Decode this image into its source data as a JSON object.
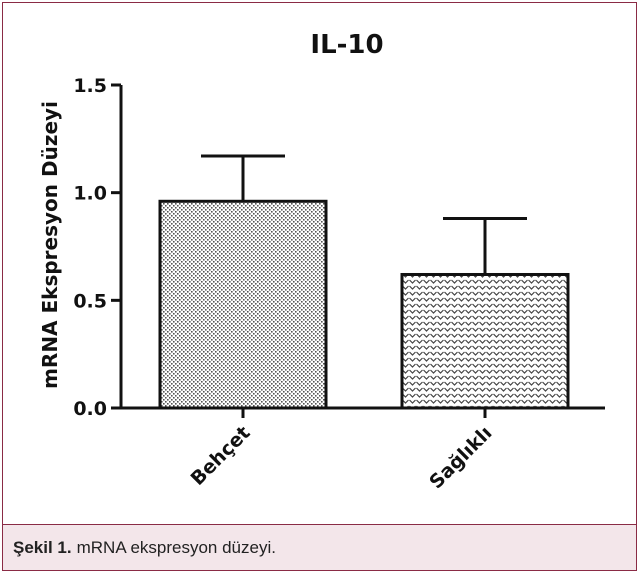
{
  "chart_data": {
    "type": "bar",
    "title": "IL-10",
    "ylabel": "mRNA Ekspresyon Düzeyi",
    "xlabel": "",
    "categories": [
      "Behçet",
      "Sağlıklı"
    ],
    "values": [
      0.96,
      0.62
    ],
    "errors": [
      0.21,
      0.26
    ],
    "ylim": [
      0,
      1.5
    ],
    "yticks": [
      "0.0",
      "0.5",
      "1.0",
      "1.5"
    ],
    "grid": false,
    "legend": "none"
  },
  "caption": {
    "label": "Şekil 1.",
    "text": "mRNA ekspresyon düzeyi."
  }
}
